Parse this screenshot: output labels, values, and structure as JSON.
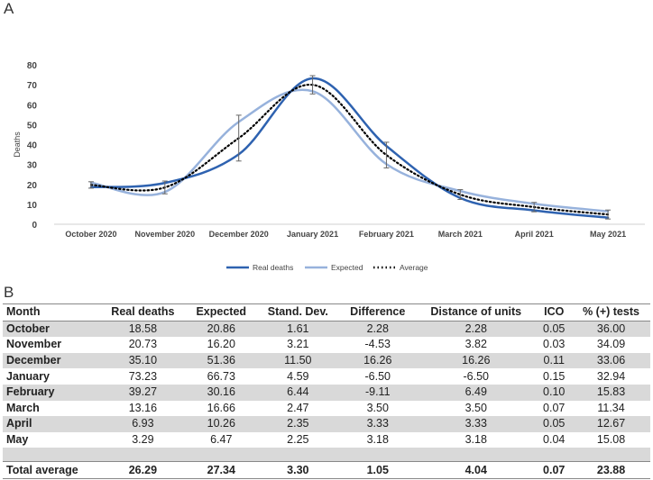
{
  "panel_a_label": "A",
  "panel_b_label": "B",
  "chart_data": {
    "type": "line",
    "title": "",
    "xlabel": "",
    "ylabel": "Deaths",
    "ylim": [
      0,
      80
    ],
    "yticks": [
      0,
      10,
      20,
      30,
      40,
      50,
      60,
      70,
      80
    ],
    "grid": false,
    "legend_position": "bottom",
    "categories": [
      "October 2020",
      "November 2020",
      "December 2020",
      "January 2021",
      "February 2021",
      "March 2021",
      "April 2021",
      "May 2021"
    ],
    "series": [
      {
        "name": "Real deaths",
        "color": "#2e62b0",
        "style": "solid",
        "values": [
          18.58,
          20.73,
          35.1,
          73.23,
          39.27,
          13.16,
          6.93,
          3.29
        ]
      },
      {
        "name": "Expected",
        "color": "#97b2dc",
        "style": "solid",
        "values": [
          20.86,
          16.2,
          51.36,
          66.73,
          30.16,
          16.66,
          10.26,
          6.47
        ]
      },
      {
        "name": "Average",
        "color": "#000000",
        "style": "dotted",
        "values": [
          19.72,
          18.47,
          43.23,
          69.98,
          34.72,
          14.91,
          8.6,
          4.88
        ],
        "error": [
          1.61,
          3.21,
          11.5,
          4.59,
          6.44,
          2.47,
          2.35,
          2.25
        ]
      }
    ]
  },
  "table": {
    "headers": [
      "Month",
      "Real deaths",
      "Expected",
      "Stand. Dev.",
      "Difference",
      "Distance of units",
      "ICO",
      "% (+) tests"
    ],
    "rows": [
      [
        "October",
        "18.58",
        "20.86",
        "1.61",
        "2.28",
        "2.28",
        "0.05",
        "36.00"
      ],
      [
        "November",
        "20.73",
        "16.20",
        "3.21",
        "-4.53",
        "3.82",
        "0.03",
        "34.09"
      ],
      [
        "December",
        "35.10",
        "51.36",
        "11.50",
        "16.26",
        "16.26",
        "0.11",
        "33.06"
      ],
      [
        "January",
        "73.23",
        "66.73",
        "4.59",
        "-6.50",
        "-6.50",
        "0.15",
        "32.94"
      ],
      [
        "February",
        "39.27",
        "30.16",
        "6.44",
        "-9.11",
        "6.49",
        "0.10",
        "15.83"
      ],
      [
        "March",
        "13.16",
        "16.66",
        "2.47",
        "3.50",
        "3.50",
        "0.07",
        "11.34"
      ],
      [
        "April",
        "6.93",
        "10.26",
        "2.35",
        "3.33",
        "3.33",
        "0.05",
        "12.67"
      ],
      [
        "May",
        "3.29",
        "6.47",
        "2.25",
        "3.18",
        "3.18",
        "0.04",
        "15.08"
      ]
    ],
    "total": [
      "Total average",
      "26.29",
      "27.34",
      "3.30",
      "1.05",
      "4.04",
      "0.07",
      "23.88"
    ]
  }
}
